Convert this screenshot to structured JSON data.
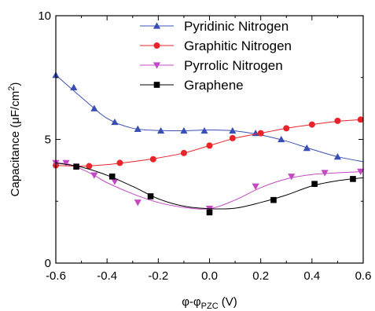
{
  "chart_data": {
    "type": "line",
    "xlabel": "φ-φ",
    "xlabel_sub": "PZC",
    "xlabel_unit": " (V)",
    "ylabel": "Capacitance (μF/cm",
    "ylabel_sup": "2",
    "ylabel_close": ")",
    "xlim": [
      -0.6,
      0.6
    ],
    "ylim": [
      0,
      10
    ],
    "x_ticks": [
      -0.6,
      -0.4,
      -0.2,
      0.0,
      0.2,
      0.4,
      0.6
    ],
    "x_tick_labels": [
      "-0.6",
      "-0.4",
      "-0.2",
      "0.0",
      "0.2",
      "0.4",
      "0.6"
    ],
    "y_ticks": [
      0,
      5,
      10
    ],
    "y_tick_labels": [
      "0",
      "5",
      "10"
    ],
    "legend_position": "top-right",
    "grid": false,
    "series": [
      {
        "name": "Pyridinic Nitrogen",
        "marker": "triangle-up",
        "color": "#3a4fb5",
        "points": [
          [
            -0.6,
            7.6
          ],
          [
            -0.53,
            7.1
          ],
          [
            -0.45,
            6.25
          ],
          [
            -0.37,
            5.7
          ],
          [
            -0.28,
            5.42
          ],
          [
            -0.19,
            5.35
          ],
          [
            -0.1,
            5.35
          ],
          [
            -0.02,
            5.35
          ],
          [
            0.09,
            5.35
          ],
          [
            0.18,
            5.25
          ],
          [
            0.28,
            5.0
          ],
          [
            0.38,
            4.65
          ],
          [
            0.5,
            4.3
          ]
        ],
        "curve": [
          [
            -0.6,
            7.6
          ],
          [
            -0.5,
            6.7
          ],
          [
            -0.4,
            5.85
          ],
          [
            -0.3,
            5.45
          ],
          [
            -0.2,
            5.36
          ],
          [
            -0.1,
            5.35
          ],
          [
            0.0,
            5.38
          ],
          [
            0.1,
            5.34
          ],
          [
            0.2,
            5.18
          ],
          [
            0.3,
            4.93
          ],
          [
            0.4,
            4.6
          ],
          [
            0.5,
            4.3
          ],
          [
            0.6,
            4.1
          ]
        ]
      },
      {
        "name": "Graphitic Nitrogen",
        "marker": "circle",
        "color": "#e8232a",
        "points": [
          [
            -0.6,
            3.95
          ],
          [
            -0.47,
            3.92
          ],
          [
            -0.35,
            4.05
          ],
          [
            -0.22,
            4.2
          ],
          [
            -0.1,
            4.45
          ],
          [
            0.0,
            4.75
          ],
          [
            0.09,
            5.05
          ],
          [
            0.2,
            5.25
          ],
          [
            0.3,
            5.45
          ],
          [
            0.4,
            5.6
          ],
          [
            0.5,
            5.75
          ],
          [
            0.59,
            5.8
          ]
        ],
        "curve": [
          [
            -0.6,
            3.95
          ],
          [
            -0.5,
            3.92
          ],
          [
            -0.4,
            3.98
          ],
          [
            -0.3,
            4.1
          ],
          [
            -0.2,
            4.25
          ],
          [
            -0.1,
            4.45
          ],
          [
            0.0,
            4.75
          ],
          [
            0.1,
            5.05
          ],
          [
            0.2,
            5.25
          ],
          [
            0.3,
            5.45
          ],
          [
            0.4,
            5.6
          ],
          [
            0.5,
            5.73
          ],
          [
            0.6,
            5.8
          ]
        ]
      },
      {
        "name": "Pyrrolic Nitrogen",
        "marker": "triangle-down",
        "color": "#c448c4",
        "points": [
          [
            -0.6,
            4.05
          ],
          [
            -0.56,
            4.05
          ],
          [
            -0.45,
            3.55
          ],
          [
            -0.37,
            3.3
          ],
          [
            -0.28,
            2.45
          ],
          [
            0.0,
            2.2
          ],
          [
            0.18,
            3.1
          ],
          [
            0.32,
            3.5
          ],
          [
            0.45,
            3.65
          ],
          [
            0.59,
            3.7
          ]
        ],
        "curve": [
          [
            -0.6,
            4.05
          ],
          [
            -0.55,
            4.0
          ],
          [
            -0.5,
            3.8
          ],
          [
            -0.45,
            3.55
          ],
          [
            -0.4,
            3.25
          ],
          [
            -0.3,
            2.8
          ],
          [
            -0.2,
            2.45
          ],
          [
            -0.1,
            2.25
          ],
          [
            0.0,
            2.2
          ],
          [
            0.1,
            2.55
          ],
          [
            0.2,
            3.05
          ],
          [
            0.3,
            3.4
          ],
          [
            0.4,
            3.58
          ],
          [
            0.5,
            3.65
          ],
          [
            0.6,
            3.7
          ]
        ]
      },
      {
        "name": "Graphene",
        "marker": "square",
        "color": "#000000",
        "points": [
          [
            -0.52,
            3.9
          ],
          [
            -0.38,
            3.5
          ],
          [
            -0.23,
            2.7
          ],
          [
            0.0,
            2.05
          ],
          [
            0.25,
            2.55
          ],
          [
            0.41,
            3.2
          ],
          [
            0.56,
            3.4
          ]
        ],
        "curve": [
          [
            -0.6,
            4.05
          ],
          [
            -0.5,
            3.88
          ],
          [
            -0.4,
            3.55
          ],
          [
            -0.3,
            3.1
          ],
          [
            -0.2,
            2.6
          ],
          [
            -0.1,
            2.3
          ],
          [
            0.0,
            2.2
          ],
          [
            0.1,
            2.22
          ],
          [
            0.2,
            2.45
          ],
          [
            0.3,
            2.75
          ],
          [
            0.4,
            3.12
          ],
          [
            0.5,
            3.33
          ],
          [
            0.6,
            3.45
          ]
        ]
      }
    ]
  }
}
